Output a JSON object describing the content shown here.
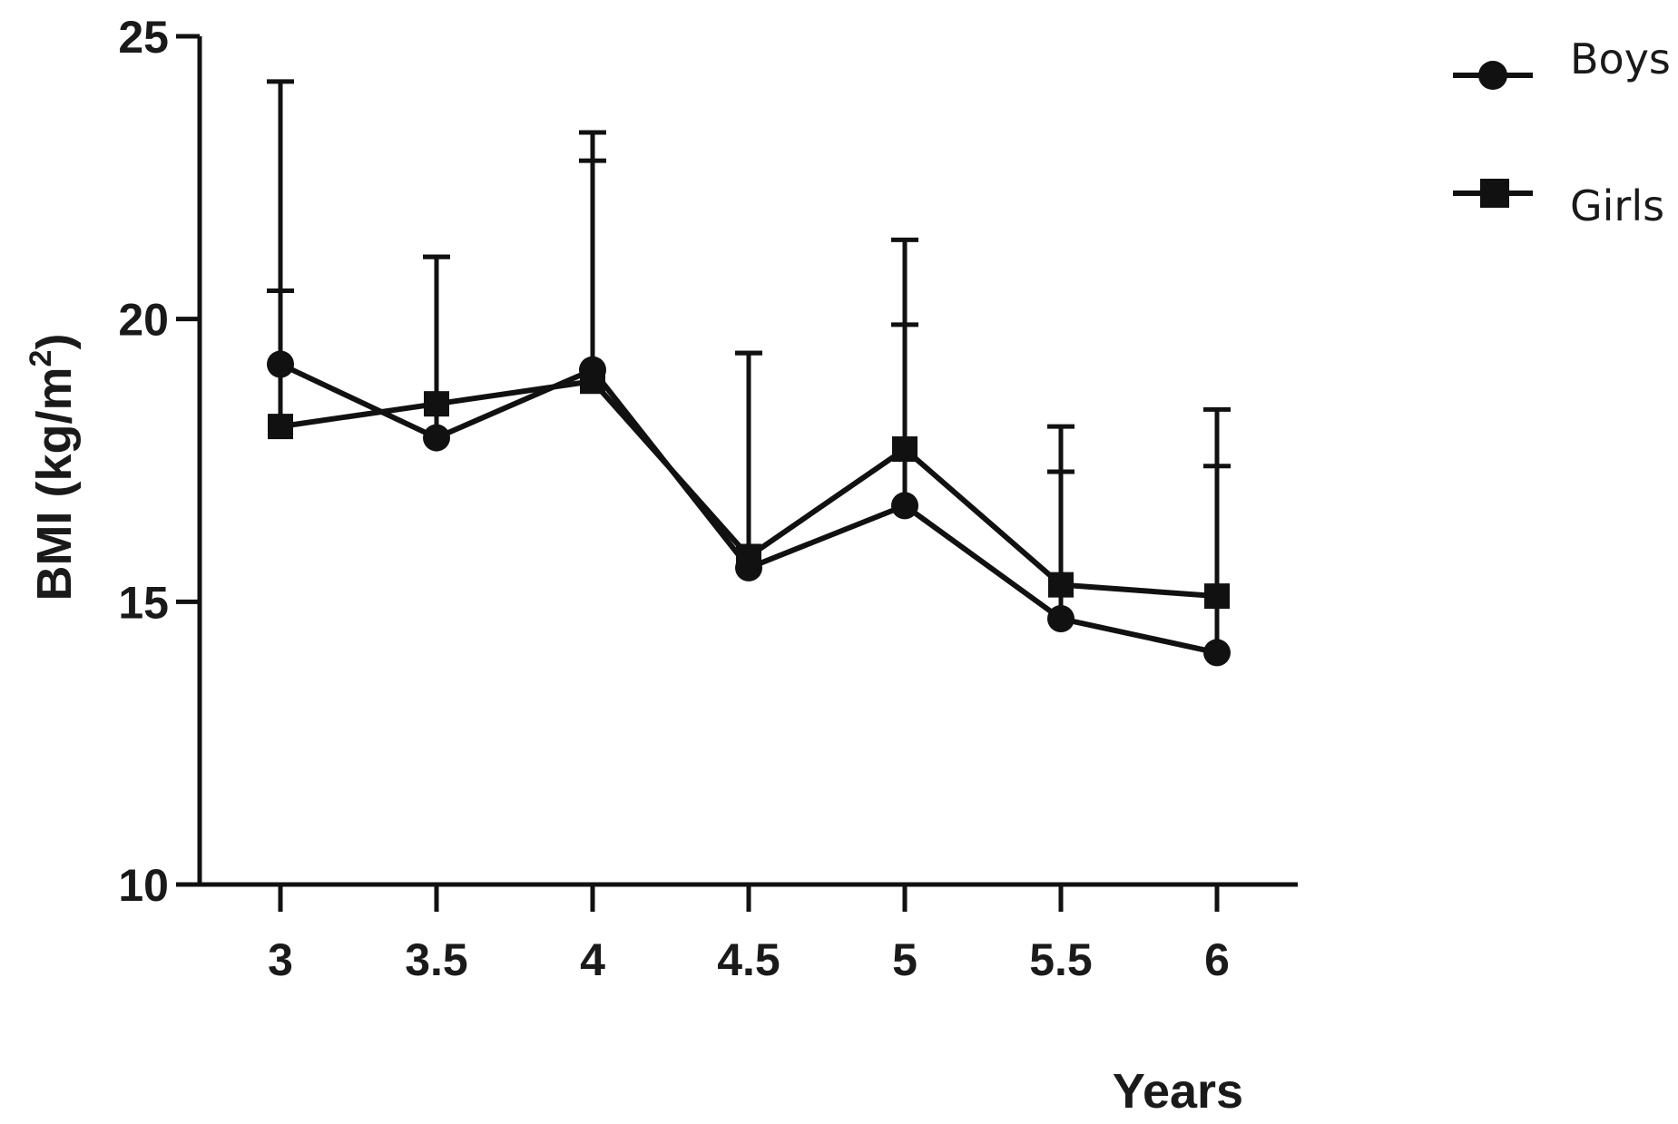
{
  "chart_data": {
    "type": "line",
    "title": "",
    "xlabel": "Years",
    "ylabel": "BMI (kg/m",
    "ylabel_superscript": "2",
    "ylabel_suffix": ")",
    "x": [
      3,
      3.5,
      4,
      4.5,
      5,
      5.5,
      6
    ],
    "x_tick_labels": [
      "3",
      "3.5",
      "4",
      "4.5",
      "5",
      "5.5",
      "6"
    ],
    "ylim": [
      10,
      25
    ],
    "y_ticks": [
      10,
      15,
      20,
      25
    ],
    "y_tick_labels": [
      "10",
      "15",
      "20",
      "25"
    ],
    "legend_position": "top-right",
    "grid": false,
    "series": [
      {
        "name": "Boys",
        "marker": "circle",
        "color": "#111111",
        "values": [
          19.2,
          17.9,
          19.1,
          15.6,
          16.7,
          14.7,
          14.1
        ],
        "error_upper": [
          24.2,
          21.1,
          22.8,
          19.4,
          19.9,
          17.3,
          17.4
        ]
      },
      {
        "name": "Girls",
        "marker": "square",
        "color": "#111111",
        "values": [
          18.1,
          18.5,
          18.9,
          15.8,
          17.7,
          15.3,
          15.1
        ],
        "error_upper": [
          20.5,
          21.1,
          23.3,
          19.4,
          21.4,
          18.1,
          18.4
        ]
      }
    ]
  }
}
